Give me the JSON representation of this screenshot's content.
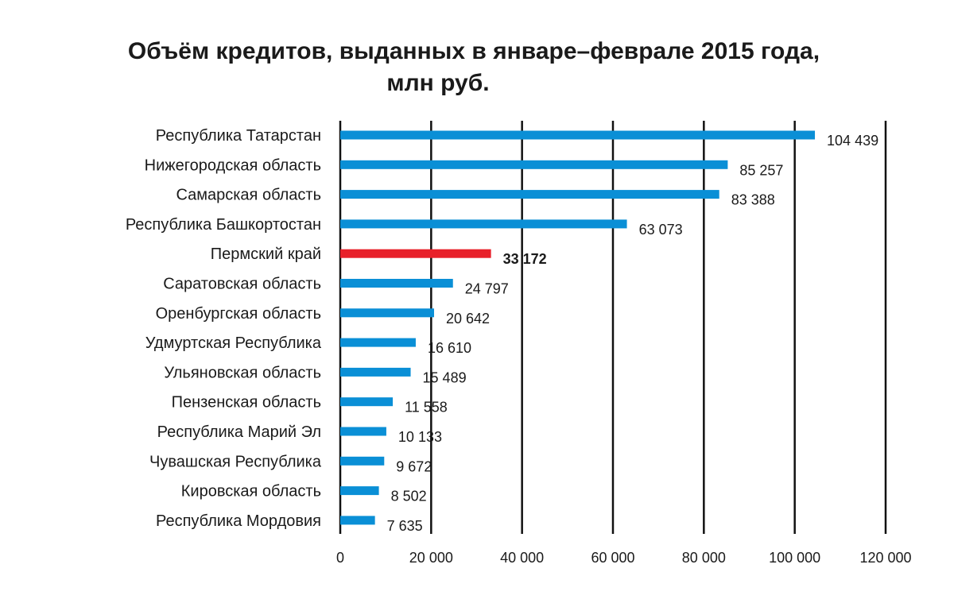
{
  "chart_data": {
    "type": "bar",
    "orientation": "horizontal",
    "title": [
      "Объём кредитов, выданных в январе–феврале 2015 года,",
      "млн руб."
    ],
    "categories": [
      "Республика Татарстан",
      "Нижегородская область",
      "Самарская область",
      "Республика Башкортостан",
      "Пермский край",
      "Саратовская область",
      "Оренбургская область",
      "Удмуртская Республика",
      "Ульяновская область",
      "Пензенская область",
      "Республика Марий Эл",
      "Чувашская Республика",
      "Кировская область",
      "Республика Мордовия"
    ],
    "values": [
      104439,
      85257,
      83388,
      63073,
      33172,
      24797,
      20642,
      16610,
      15489,
      11558,
      10133,
      9672,
      8502,
      7635
    ],
    "value_labels": [
      "104 439",
      "85 257",
      "83 388",
      "63 073",
      "33 172",
      "24 797",
      "20 642",
      "16 610",
      "15 489",
      "11 558",
      "10 133",
      "9 672",
      "8 502",
      "7 635"
    ],
    "highlight_index": 4,
    "colors": {
      "bar": "#0a8fd6",
      "highlight": "#e8202a",
      "grid": "#111111",
      "text": "#1a1a1a"
    },
    "xlim": [
      0,
      120000
    ],
    "xticks": [
      0,
      20000,
      40000,
      60000,
      80000,
      100000,
      120000
    ],
    "xtick_labels": [
      "0",
      "20 000",
      "40 000",
      "60 000",
      "80 000",
      "100 000",
      "120 000"
    ],
    "xlabel": "",
    "ylabel": "",
    "grid": true,
    "legend": "none"
  }
}
